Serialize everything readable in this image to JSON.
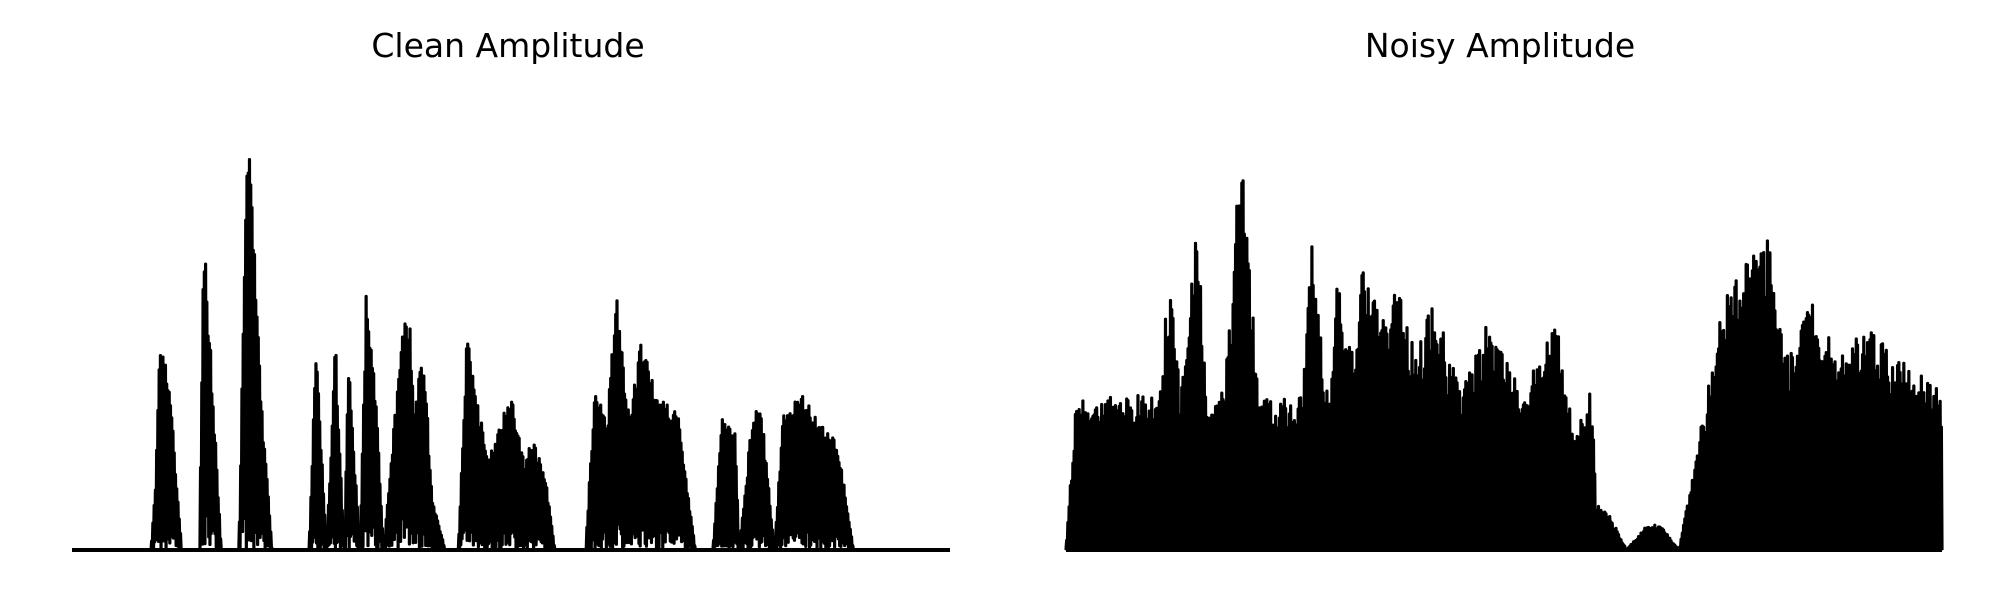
{
  "chart_data": [
    {
      "type": "line",
      "title": "Clean Amplitude",
      "axes_visible": false,
      "grid": false,
      "color": "#000000",
      "x_range": [
        0,
        1
      ],
      "ylim": [
        0,
        1
      ],
      "envelope": [
        [
          0.0,
          0.0
        ],
        [
          0.09,
          0.0
        ],
        [
          0.095,
          0.15
        ],
        [
          0.1,
          0.45
        ],
        [
          0.11,
          0.4
        ],
        [
          0.125,
          0.0
        ],
        [
          0.145,
          0.0
        ],
        [
          0.15,
          0.72
        ],
        [
          0.158,
          0.45
        ],
        [
          0.17,
          0.0
        ],
        [
          0.19,
          0.0
        ],
        [
          0.2,
          1.0
        ],
        [
          0.215,
          0.35
        ],
        [
          0.228,
          0.0
        ],
        [
          0.27,
          0.0
        ],
        [
          0.278,
          0.48
        ],
        [
          0.29,
          0.0
        ],
        [
          0.3,
          0.47
        ],
        [
          0.31,
          0.0
        ],
        [
          0.315,
          0.42
        ],
        [
          0.328,
          0.0
        ],
        [
          0.335,
          0.57
        ],
        [
          0.345,
          0.38
        ],
        [
          0.355,
          0.0
        ],
        [
          0.375,
          0.48
        ],
        [
          0.385,
          0.52
        ],
        [
          0.39,
          0.3
        ],
        [
          0.4,
          0.46
        ],
        [
          0.41,
          0.12
        ],
        [
          0.425,
          0.0
        ],
        [
          0.44,
          0.0
        ],
        [
          0.45,
          0.48
        ],
        [
          0.46,
          0.35
        ],
        [
          0.475,
          0.2
        ],
        [
          0.5,
          0.36
        ],
        [
          0.515,
          0.2
        ],
        [
          0.525,
          0.25
        ],
        [
          0.54,
          0.15
        ],
        [
          0.55,
          0.0
        ],
        [
          0.585,
          0.0
        ],
        [
          0.595,
          0.35
        ],
        [
          0.61,
          0.3
        ],
        [
          0.62,
          0.57
        ],
        [
          0.635,
          0.3
        ],
        [
          0.65,
          0.48
        ],
        [
          0.665,
          0.34
        ],
        [
          0.69,
          0.3
        ],
        [
          0.7,
          0.15
        ],
        [
          0.71,
          0.0
        ],
        [
          0.73,
          0.0
        ],
        [
          0.74,
          0.3
        ],
        [
          0.755,
          0.27
        ],
        [
          0.76,
          0.0
        ],
        [
          0.775,
          0.3
        ],
        [
          0.785,
          0.32
        ],
        [
          0.8,
          0.0
        ],
        [
          0.81,
          0.3
        ],
        [
          0.83,
          0.35
        ],
        [
          0.85,
          0.28
        ],
        [
          0.87,
          0.24
        ],
        [
          0.88,
          0.14
        ],
        [
          0.89,
          0.0
        ],
        [
          1.0,
          0.0
        ]
      ]
    },
    {
      "type": "line",
      "title": "Noisy Amplitude",
      "axes_visible": false,
      "grid": false,
      "color": "#000000",
      "x_range": [
        0,
        1
      ],
      "ylim": [
        0,
        1
      ],
      "envelope": [
        [
          0.0,
          0.0
        ],
        [
          0.01,
          0.3
        ],
        [
          0.02,
          0.34
        ],
        [
          0.1,
          0.34
        ],
        [
          0.11,
          0.38
        ],
        [
          0.115,
          0.6
        ],
        [
          0.12,
          0.62
        ],
        [
          0.13,
          0.34
        ],
        [
          0.15,
          0.72
        ],
        [
          0.16,
          0.34
        ],
        [
          0.18,
          0.36
        ],
        [
          0.19,
          0.55
        ],
        [
          0.2,
          1.0
        ],
        [
          0.21,
          0.62
        ],
        [
          0.22,
          0.34
        ],
        [
          0.27,
          0.34
        ],
        [
          0.28,
          0.68
        ],
        [
          0.3,
          0.34
        ],
        [
          0.31,
          0.6
        ],
        [
          0.33,
          0.4
        ],
        [
          0.34,
          0.66
        ],
        [
          0.36,
          0.5
        ],
        [
          0.38,
          0.58
        ],
        [
          0.4,
          0.45
        ],
        [
          0.42,
          0.55
        ],
        [
          0.45,
          0.35
        ],
        [
          0.48,
          0.5
        ],
        [
          0.52,
          0.35
        ],
        [
          0.56,
          0.5
        ],
        [
          0.58,
          0.25
        ],
        [
          0.6,
          0.36
        ],
        [
          0.605,
          0.1
        ],
        [
          0.62,
          0.08
        ],
        [
          0.64,
          0.0
        ],
        [
          0.665,
          0.06
        ],
        [
          0.68,
          0.05
        ],
        [
          0.7,
          0.0
        ],
        [
          0.72,
          0.22
        ],
        [
          0.75,
          0.55
        ],
        [
          0.78,
          0.65
        ],
        [
          0.8,
          0.72
        ],
        [
          0.82,
          0.42
        ],
        [
          0.85,
          0.55
        ],
        [
          0.88,
          0.45
        ],
        [
          0.92,
          0.48
        ],
        [
          0.95,
          0.42
        ],
        [
          0.98,
          0.38
        ],
        [
          1.0,
          0.35
        ]
      ]
    }
  ]
}
